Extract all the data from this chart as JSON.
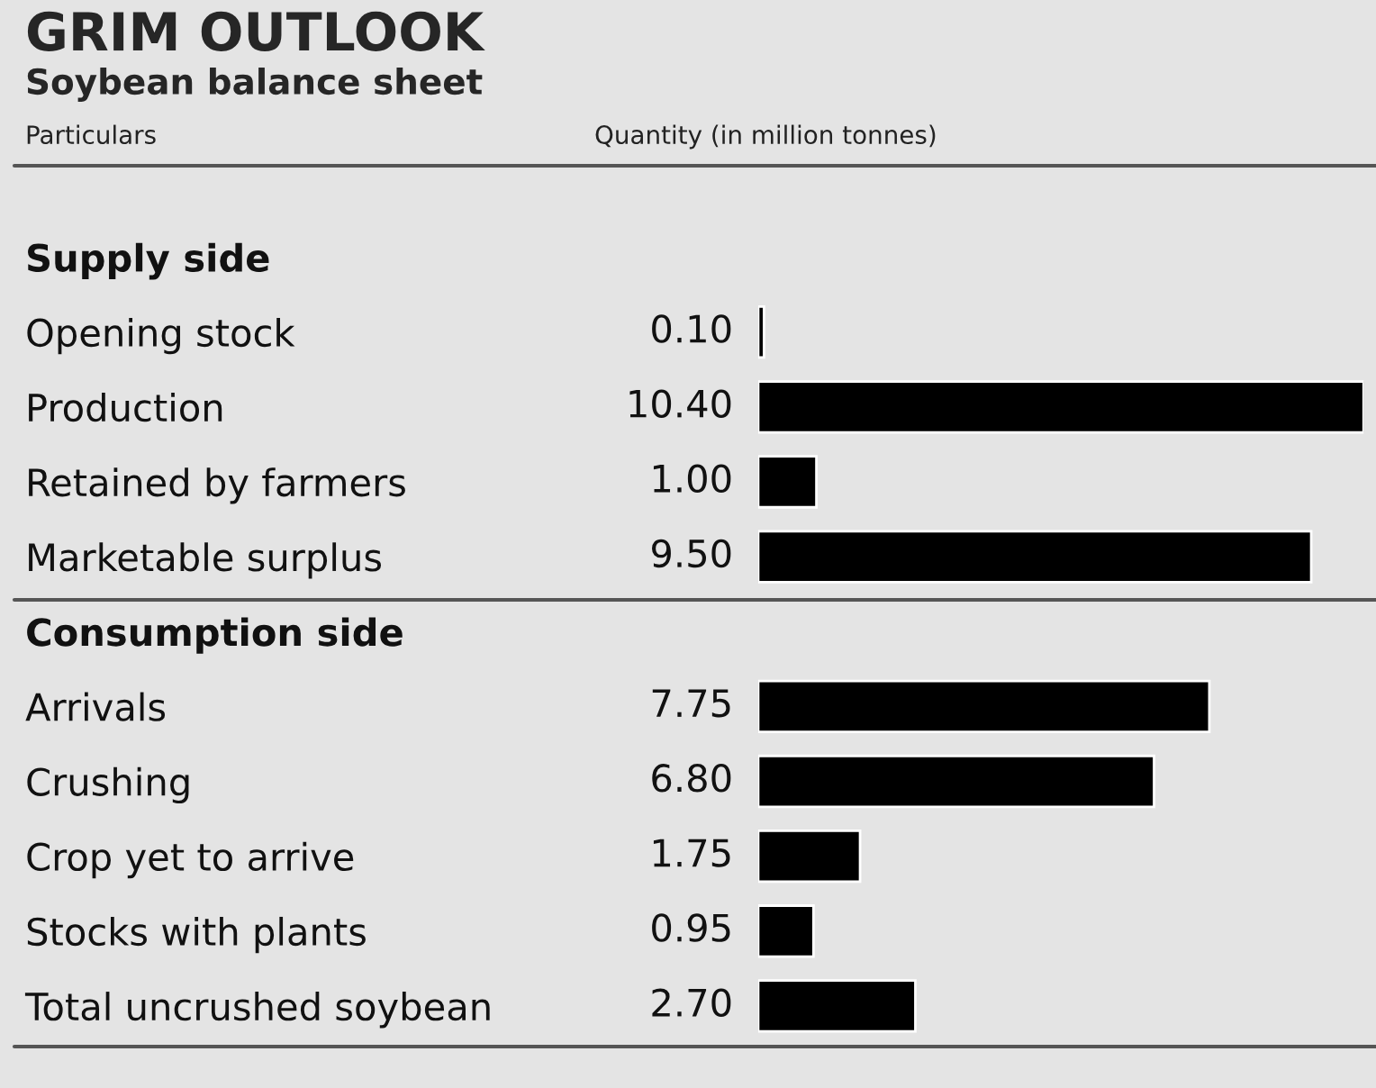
{
  "chart_data": {
    "type": "bar",
    "orientation": "horizontal",
    "title": "GRIM OUTLOOK",
    "subtitle": "Soybean balance sheet",
    "annotations": [
      "Particulars",
      "Quantity (in million tonnes)"
    ],
    "categories": [
      "Supply side",
      "Opening stock",
      "Production",
      "Retained by farmers",
      "Marketable surplus",
      "Consumption side",
      "Arrivals",
      "Crushing",
      "Crop yet to arrive",
      "Stocks with plants",
      "Total uncrushed soybean"
    ],
    "values": [
      null,
      0.1,
      10.4,
      1.0,
      9.5,
      null,
      7.75,
      6.8,
      1.75,
      0.95,
      2.7
    ],
    "value_labels": [
      null,
      "0.10",
      "10.40",
      "1.00",
      "9.50",
      null,
      "7.75",
      "6.80",
      "1.75",
      "0.95",
      "2.70"
    ],
    "color": "#000000",
    "data_labels": true,
    "grid": false,
    "legend": false
  }
}
